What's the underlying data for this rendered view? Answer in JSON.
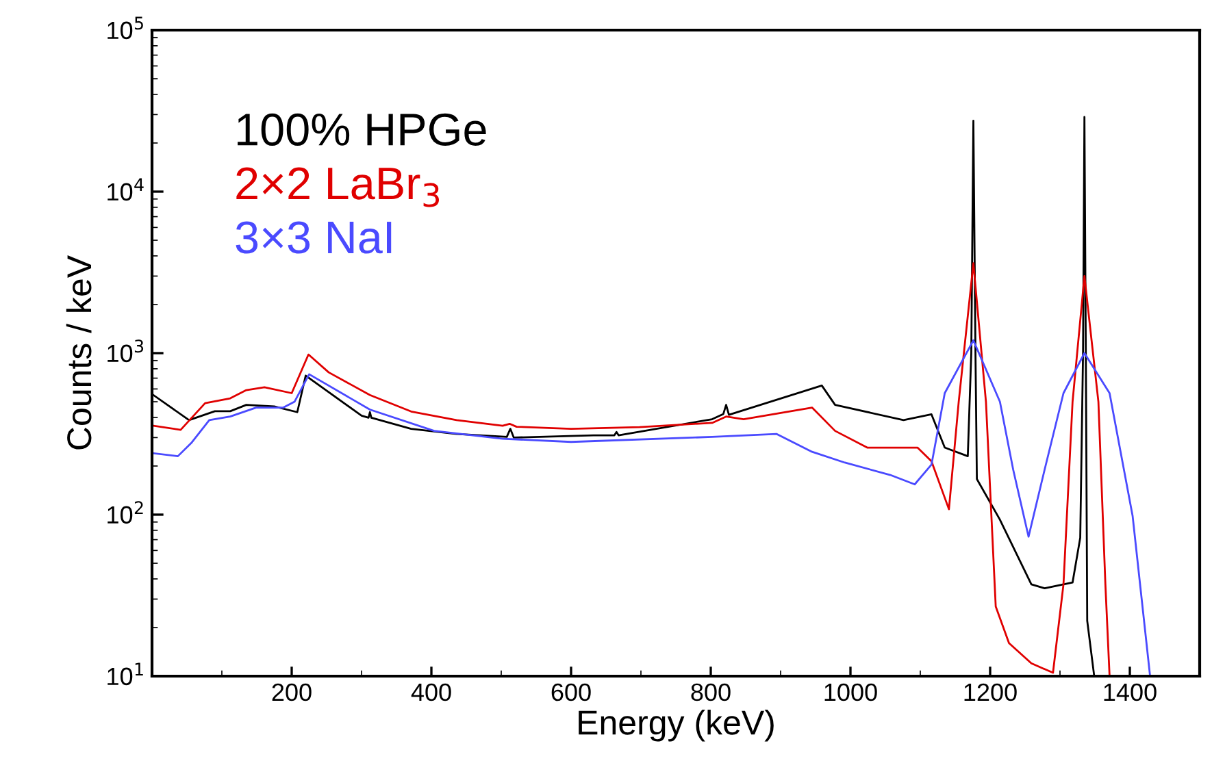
{
  "chart_data": {
    "type": "line",
    "xlabel": "Energy (keV)",
    "ylabel": "Counts / keV",
    "xlim": [
      0,
      1500
    ],
    "xticks": [
      200,
      400,
      600,
      800,
      1000,
      1200,
      1400
    ],
    "ylim": [
      10,
      100000
    ],
    "log": "y",
    "yticks": [
      {
        "value": 10,
        "label": "10$^{1}$"
      },
      {
        "value": 100,
        "label": "10$^{2}$"
      },
      {
        "value": 1000,
        "label": "10$^{3}$"
      },
      {
        "value": 10000,
        "label": "10$^{4}$"
      },
      {
        "value": 100000,
        "label": "10$^{5}$"
      }
    ],
    "grid": false,
    "legend": "top left",
    "marker": "none",
    "line_style": "solid",
    "series": [
      {
        "name": "100% HPGe",
        "color": "#000000",
        "x": [
          2,
          53,
          90,
          112,
          135,
          175,
          208,
          220,
          300,
          310,
          312,
          314,
          371,
          436,
          508,
          513,
          518,
          632,
          662,
          665,
          668,
          802,
          818,
          822,
          826,
          959,
          978,
          1076,
          1116,
          1135,
          1168,
          1173,
          1176,
          1179,
          1181,
          1214,
          1259,
          1278,
          1318,
          1329,
          1333,
          1335,
          1337,
          1339,
          1349
        ],
        "values": [
          550,
          385,
          437,
          437,
          478,
          468,
          431,
          725,
          410,
          398,
          431,
          398,
          340,
          316,
          303,
          340,
          300,
          310,
          310,
          325,
          310,
          390,
          420,
          478,
          415,
          630,
          478,
          385,
          418,
          260,
          230,
          1000,
          27500,
          1000,
          166,
          93,
          37,
          35,
          38,
          72,
          1000,
          29000,
          1000,
          22,
          10
        ]
      },
      {
        "name": "2×2 LaBr$_{3}$",
        "color": "#e00000",
        "x": [
          2,
          41,
          76,
          112,
          135,
          161,
          200,
          224,
          253,
          312,
          371,
          436,
          502,
          512,
          522,
          600,
          698,
          802,
          822,
          847,
          945,
          978,
          1024,
          1096,
          1116,
          1141,
          1155,
          1176,
          1194,
          1208,
          1227,
          1259,
          1290,
          1305,
          1318,
          1335,
          1355,
          1365,
          1371
        ],
        "values": [
          355,
          335,
          490,
          525,
          590,
          615,
          565,
          980,
          760,
          550,
          435,
          385,
          355,
          365,
          350,
          340,
          348,
          370,
          405,
          390,
          460,
          330,
          260,
          260,
          214,
          108,
          500,
          3600,
          500,
          27,
          16,
          12,
          10.5,
          37,
          500,
          3000,
          500,
          37,
          10
        ]
      },
      {
        "name": "3×3 NaI",
        "color": "#4a4aff",
        "x": [
          2,
          37,
          57,
          82,
          112,
          149,
          188,
          204,
          225,
          312,
          404,
          502,
          600,
          802,
          894,
          945,
          992,
          1057,
          1092,
          1116,
          1135,
          1176,
          1214,
          1233,
          1255,
          1278,
          1305,
          1335,
          1371,
          1404,
          1429
        ],
        "values": [
          240,
          230,
          280,
          385,
          405,
          460,
          460,
          500,
          740,
          447,
          330,
          295,
          282,
          303,
          316,
          245,
          210,
          176,
          154,
          204,
          565,
          1200,
          500,
          190,
          73,
          190,
          565,
          1000,
          565,
          98,
          10
        ]
      }
    ]
  }
}
